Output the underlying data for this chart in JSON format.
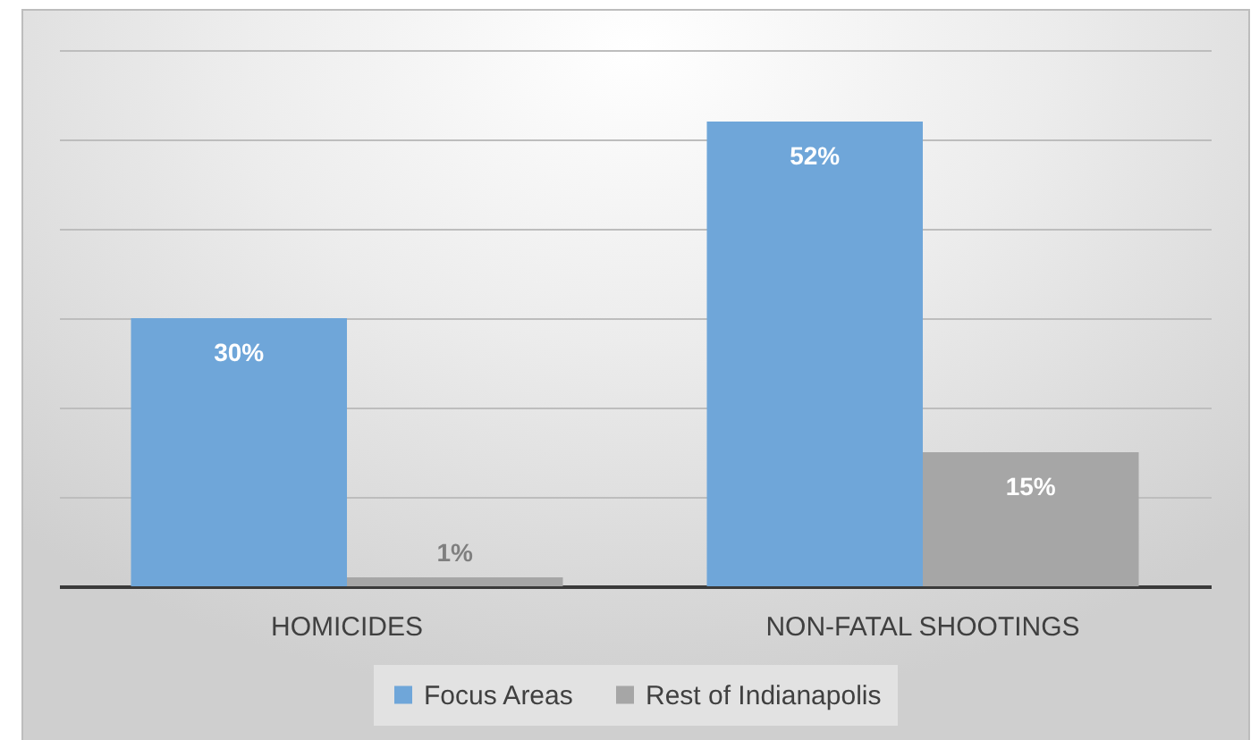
{
  "chart_data": {
    "type": "bar",
    "categories": [
      "HOMICIDES",
      "NON-FATAL SHOOTINGS"
    ],
    "series": [
      {
        "name": "Focus Areas",
        "color": "#6fa6d9",
        "values": [
          30,
          52
        ],
        "value_labels": [
          "30%",
          "52%"
        ]
      },
      {
        "name": "Rest of Indianapolis",
        "color": "#a6a6a6",
        "values": [
          1,
          15
        ],
        "value_labels": [
          "1%",
          "15%"
        ]
      }
    ],
    "ylim": [
      0,
      60
    ],
    "yticks": [
      {
        "value": 0,
        "label": null
      },
      {
        "value": 10,
        "label": null
      },
      {
        "value": 20,
        "label": null
      },
      {
        "value": 30,
        "label": null
      },
      {
        "value": 40,
        "label": null
      },
      {
        "value": 50,
        "label": null
      },
      {
        "value": 60,
        "label": null
      }
    ],
    "grid": "y",
    "legend": "bottom",
    "tick_labels": "x"
  }
}
